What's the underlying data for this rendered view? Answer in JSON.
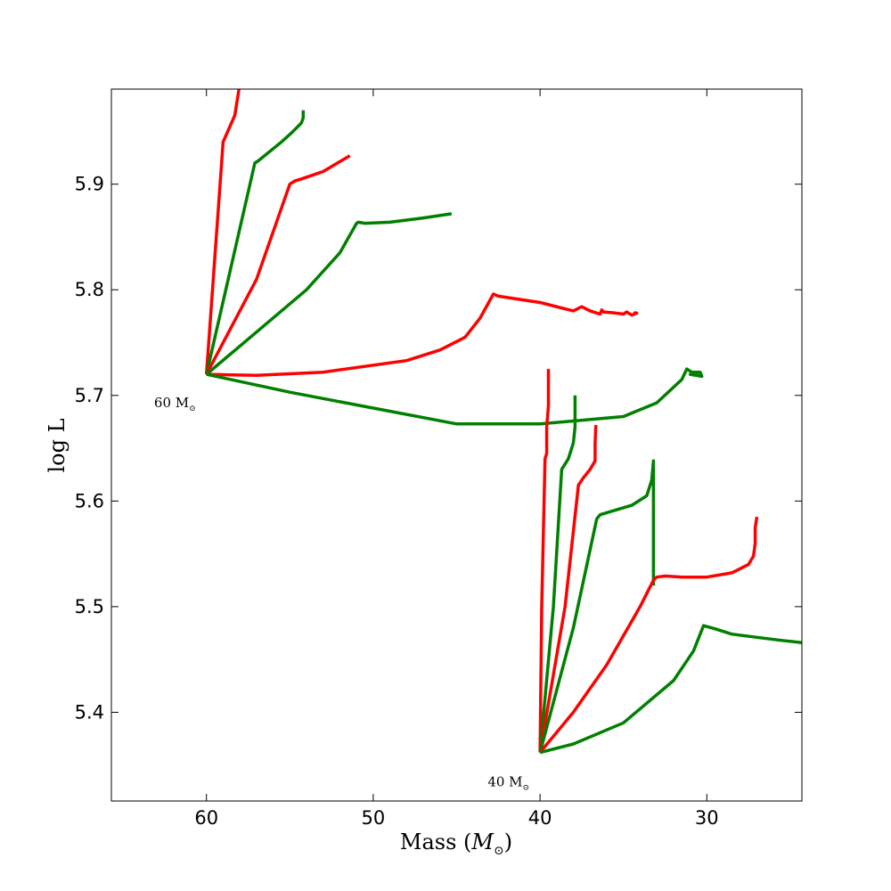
{
  "chart_data": {
    "type": "line",
    "title": "",
    "xlabel": "Mass",
    "xlabel_unit_symbol": "M",
    "ylabel": "log L",
    "xlim": [
      65.7,
      24.3
    ],
    "ylim": [
      5.316,
      5.99
    ],
    "x_inverted": true,
    "grid": false,
    "legend": "none",
    "xticks": [
      60,
      50,
      40,
      30
    ],
    "yticks": [
      5.4,
      5.5,
      5.6,
      5.7,
      5.8,
      5.9
    ],
    "colors": {
      "red": "#ff0000",
      "green": "#008000"
    },
    "annotations": [
      {
        "text": "60 M",
        "x": 60,
        "y": 5.72
      },
      {
        "text": "40 M",
        "x": 40,
        "y": 5.361
      }
    ],
    "series": [
      {
        "color": "red",
        "x": [
          60.0,
          59.0,
          58.3,
          58.2,
          58.1,
          58.0
        ],
        "y": [
          5.72,
          5.94,
          5.965,
          5.975,
          5.985,
          5.995
        ]
      },
      {
        "color": "green",
        "x": [
          60.0,
          57.1,
          56.9,
          55.5,
          54.8,
          54.3,
          54.2,
          54.2
        ],
        "y": [
          5.72,
          5.92,
          5.922,
          5.94,
          5.95,
          5.958,
          5.963,
          5.97
        ]
      },
      {
        "color": "red",
        "x": [
          60.0,
          57.0,
          55.0,
          54.7,
          54.3,
          53.0,
          51.4
        ],
        "y": [
          5.72,
          5.81,
          5.9,
          5.903,
          5.905,
          5.912,
          5.927
        ]
      },
      {
        "color": "green",
        "x": [
          60.0,
          57.0,
          54.0,
          52.0,
          51.0,
          50.9,
          50.5,
          49.0,
          47.0,
          45.3
        ],
        "y": [
          5.72,
          5.76,
          5.8,
          5.835,
          5.863,
          5.864,
          5.863,
          5.864,
          5.868,
          5.872
        ]
      },
      {
        "color": "red",
        "x": [
          60.0,
          57.0,
          53.0,
          48.0,
          46.0,
          44.5,
          43.6,
          42.8,
          42.5,
          40.0,
          38.0,
          37.5,
          37.0,
          36.4,
          36.3,
          36.2,
          35.5,
          35.0,
          34.8,
          34.5,
          34.2,
          34.4
        ],
        "y": [
          5.72,
          5.719,
          5.722,
          5.733,
          5.743,
          5.755,
          5.773,
          5.796,
          5.794,
          5.788,
          5.78,
          5.784,
          5.78,
          5.777,
          5.781,
          5.779,
          5.778,
          5.777,
          5.779,
          5.776,
          5.778,
          5.778
        ]
      },
      {
        "color": "green",
        "x": [
          60.0,
          55.0,
          50.0,
          45.0,
          40.0,
          35.0,
          33.0,
          31.5,
          31.2,
          30.9,
          30.4,
          30.3,
          31.0,
          30.5
        ],
        "y": [
          5.72,
          5.703,
          5.688,
          5.673,
          5.673,
          5.68,
          5.693,
          5.715,
          5.725,
          5.722,
          5.722,
          5.718,
          5.72,
          5.72
        ]
      },
      {
        "color": "red",
        "x": [
          40.0,
          39.9,
          39.7,
          39.6,
          39.6,
          39.5,
          39.5
        ],
        "y": [
          5.362,
          5.5,
          5.64,
          5.645,
          5.67,
          5.69,
          5.725
        ]
      },
      {
        "color": "green",
        "x": [
          40.0,
          39.2,
          38.7,
          38.3,
          38.0,
          37.9,
          37.9
        ],
        "y": [
          5.362,
          5.5,
          5.63,
          5.64,
          5.655,
          5.67,
          5.7
        ]
      },
      {
        "color": "red",
        "x": [
          40.0,
          38.5,
          37.7,
          37.4,
          37.0,
          36.7,
          36.7,
          36.65
        ],
        "y": [
          5.362,
          5.5,
          5.615,
          5.622,
          5.63,
          5.638,
          5.655,
          5.672
        ]
      },
      {
        "color": "green",
        "x": [
          40.0,
          38.0,
          36.6,
          36.4,
          36.0,
          34.5,
          33.6,
          33.3,
          33.2,
          33.2,
          33.2
        ],
        "y": [
          5.362,
          5.48,
          5.583,
          5.587,
          5.589,
          5.596,
          5.605,
          5.62,
          5.638,
          5.52,
          5.52
        ]
      },
      {
        "color": "red",
        "x": [
          40.0,
          38.0,
          36.0,
          34.0,
          33.2,
          33.0,
          32.5,
          31.5,
          30.0,
          28.5,
          27.5,
          27.2,
          27.1,
          27.1,
          27.0
        ],
        "y": [
          5.362,
          5.4,
          5.445,
          5.5,
          5.525,
          5.528,
          5.529,
          5.528,
          5.528,
          5.532,
          5.54,
          5.548,
          5.56,
          5.575,
          5.585
        ]
      },
      {
        "color": "green",
        "x": [
          40.0,
          38.0,
          35.0,
          32.0,
          30.8,
          30.2,
          29.5,
          28.5,
          27.0,
          25.5,
          24.3
        ],
        "y": [
          5.362,
          5.37,
          5.39,
          5.43,
          5.458,
          5.482,
          5.479,
          5.474,
          5.471,
          5.468,
          5.466
        ]
      }
    ]
  }
}
